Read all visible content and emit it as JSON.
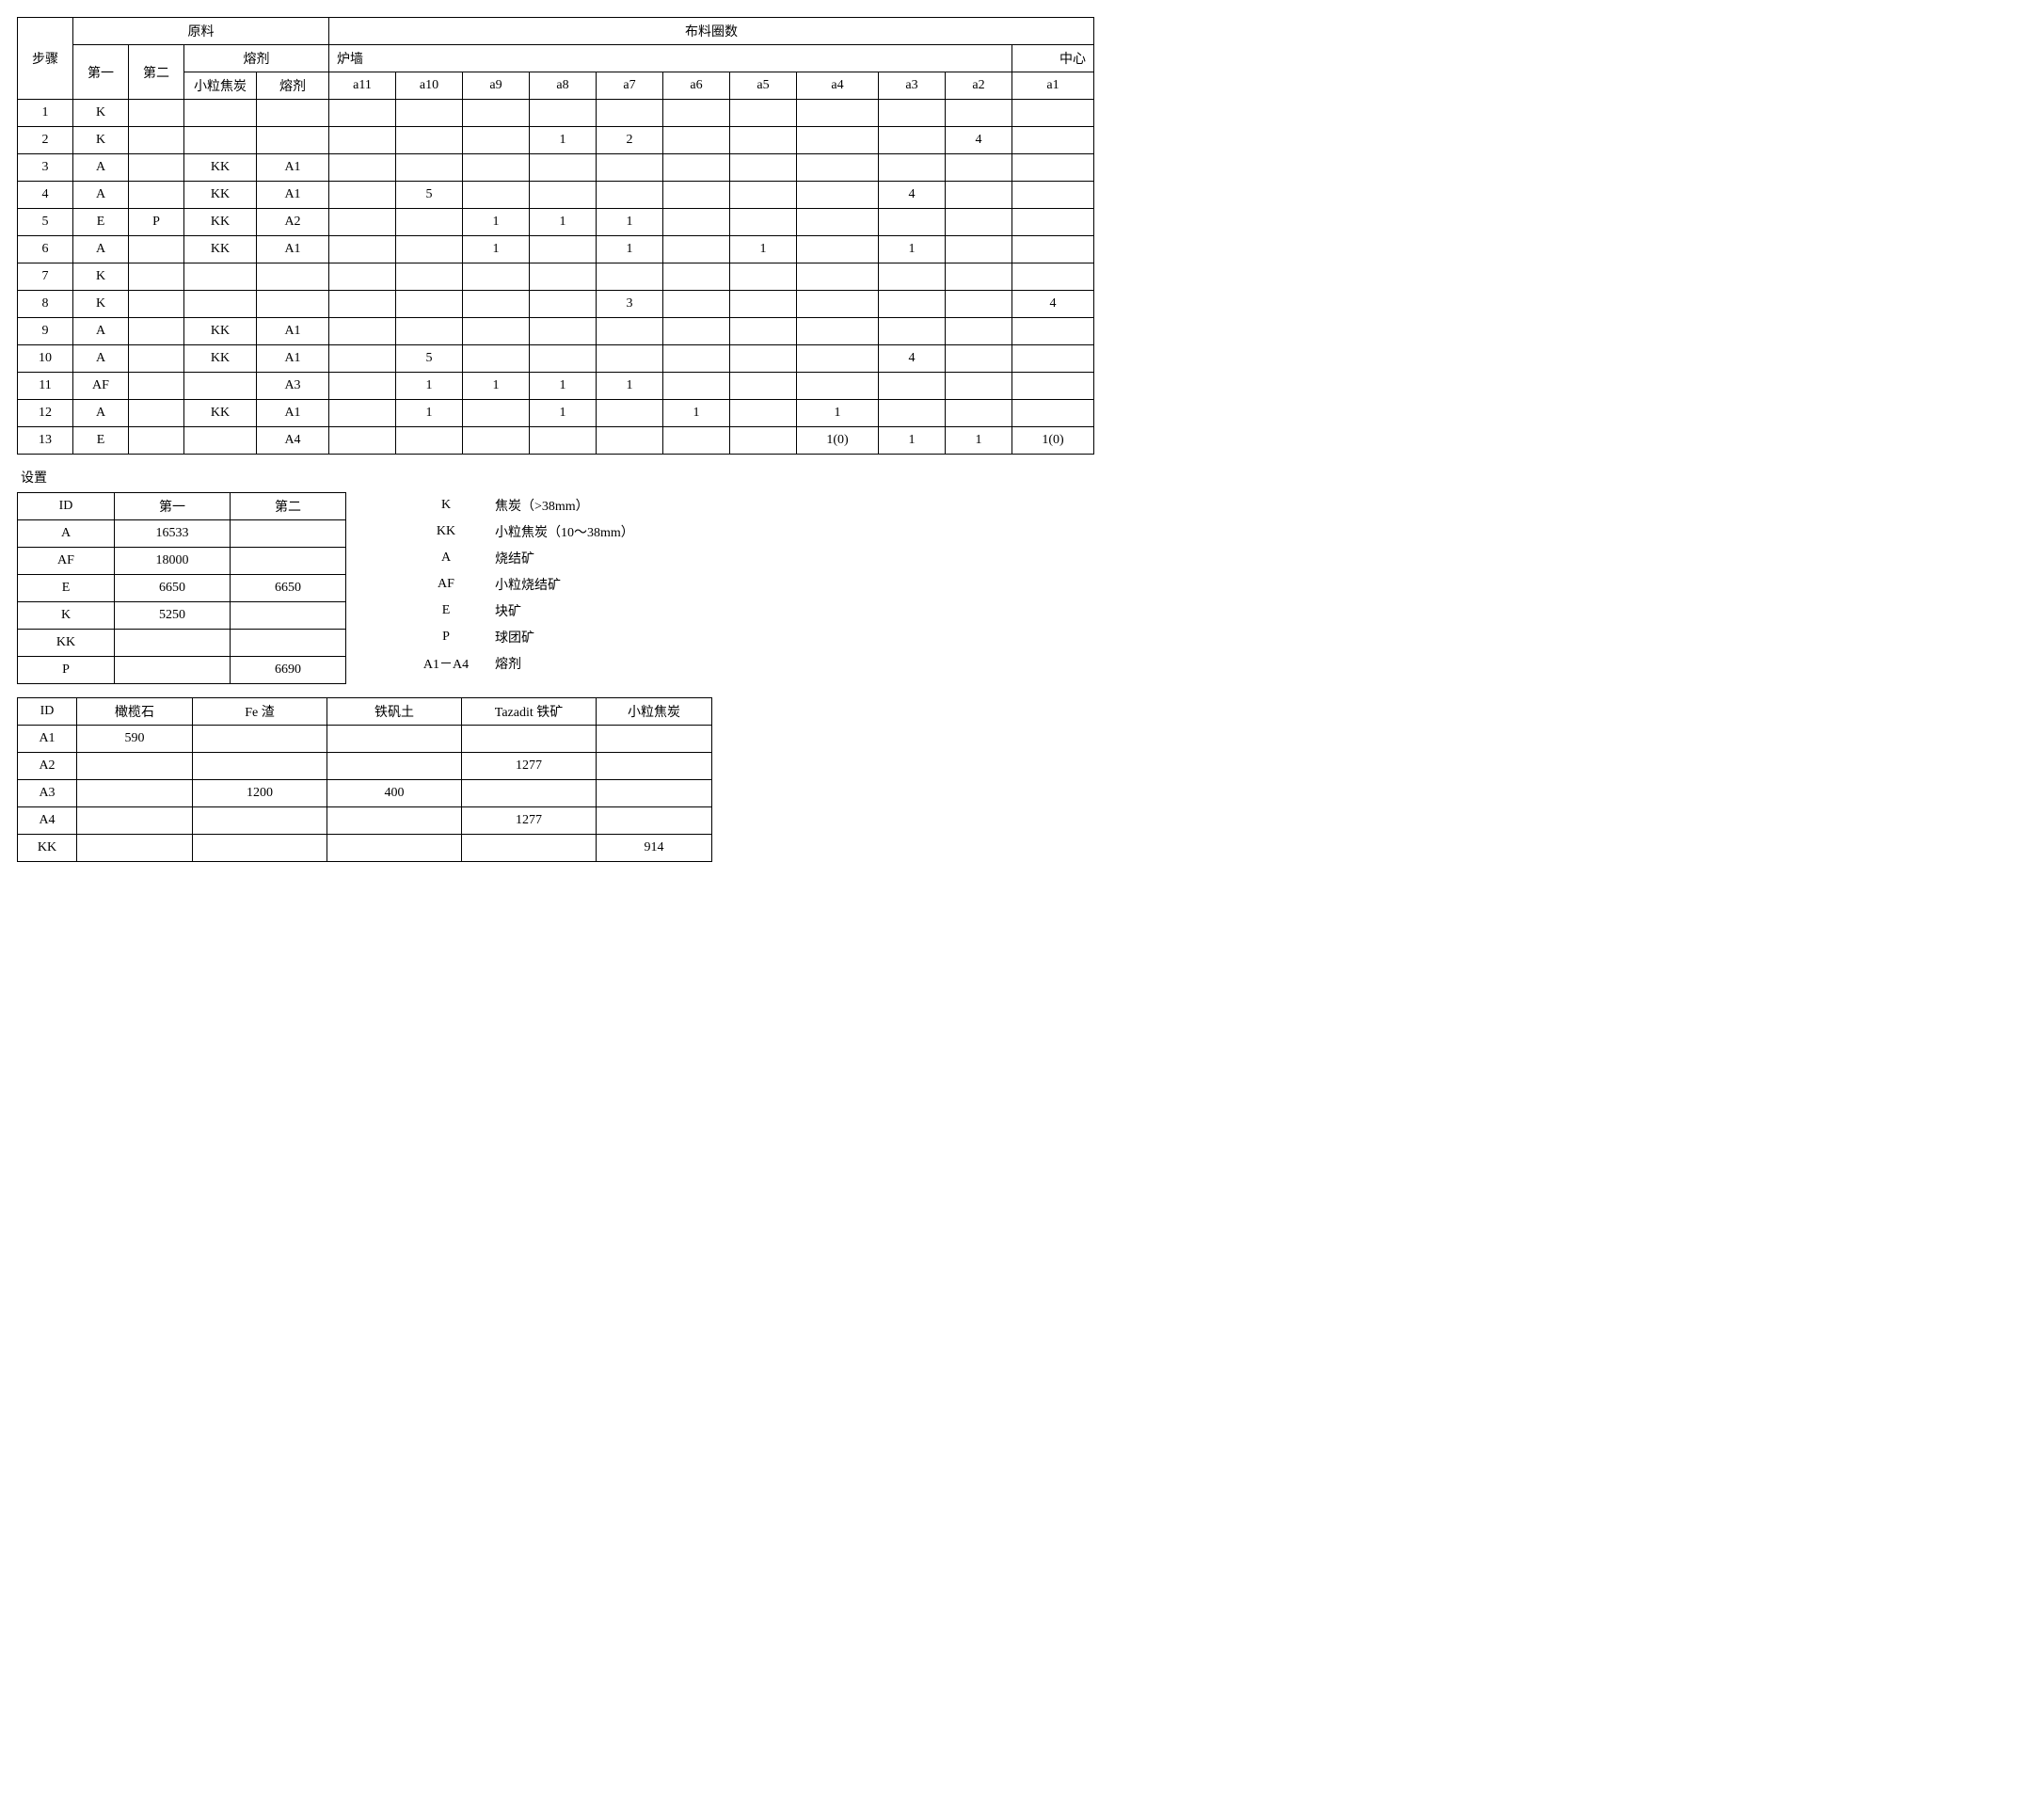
{
  "main_table": {
    "headers": {
      "step": "步骤",
      "raw_material": "原料",
      "first": "第一",
      "second": "第二",
      "flux_group": "熔剂",
      "small_coke": "小粒焦炭",
      "flux": "熔剂",
      "ring_count": "布料圈数",
      "furnace_wall": "炉墙",
      "center": "中心",
      "a11": "a11",
      "a10": "a10",
      "a9": "a9",
      "a8": "a8",
      "a7": "a7",
      "a6": "a6",
      "a5": "a5",
      "a4": "a4",
      "a3": "a3",
      "a2": "a2",
      "a1": "a1"
    },
    "rows": [
      {
        "step": "1",
        "first": "K",
        "second": "",
        "small": "",
        "flux": "",
        "a11": "",
        "a10": "",
        "a9": "",
        "a8": "",
        "a7": "",
        "a6": "",
        "a5": "",
        "a4": "",
        "a3": "",
        "a2": "",
        "a1": ""
      },
      {
        "step": "2",
        "first": "K",
        "second": "",
        "small": "",
        "flux": "",
        "a11": "",
        "a10": "",
        "a9": "",
        "a8": "1",
        "a7": "2",
        "a6": "",
        "a5": "",
        "a4": "",
        "a3": "",
        "a2": "4",
        "a1": ""
      },
      {
        "step": "3",
        "first": "A",
        "second": "",
        "small": "KK",
        "flux": "A1",
        "a11": "",
        "a10": "",
        "a9": "",
        "a8": "",
        "a7": "",
        "a6": "",
        "a5": "",
        "a4": "",
        "a3": "",
        "a2": "",
        "a1": ""
      },
      {
        "step": "4",
        "first": "A",
        "second": "",
        "small": "KK",
        "flux": "A1",
        "a11": "",
        "a10": "5",
        "a9": "",
        "a8": "",
        "a7": "",
        "a6": "",
        "a5": "",
        "a4": "",
        "a3": "4",
        "a2": "",
        "a1": ""
      },
      {
        "step": "5",
        "first": "E",
        "second": "P",
        "small": "KK",
        "flux": "A2",
        "a11": "",
        "a10": "",
        "a9": "1",
        "a8": "1",
        "a7": "1",
        "a6": "",
        "a5": "",
        "a4": "",
        "a3": "",
        "a2": "",
        "a1": ""
      },
      {
        "step": "6",
        "first": "A",
        "second": "",
        "small": "KK",
        "flux": "A1",
        "a11": "",
        "a10": "",
        "a9": "1",
        "a8": "",
        "a7": "1",
        "a6": "",
        "a5": "1",
        "a4": "",
        "a3": "1",
        "a2": "",
        "a1": ""
      },
      {
        "step": "7",
        "first": "K",
        "second": "",
        "small": "",
        "flux": "",
        "a11": "",
        "a10": "",
        "a9": "",
        "a8": "",
        "a7": "",
        "a6": "",
        "a5": "",
        "a4": "",
        "a3": "",
        "a2": "",
        "a1": ""
      },
      {
        "step": "8",
        "first": "K",
        "second": "",
        "small": "",
        "flux": "",
        "a11": "",
        "a10": "",
        "a9": "",
        "a8": "",
        "a7": "3",
        "a6": "",
        "a5": "",
        "a4": "",
        "a3": "",
        "a2": "",
        "a1": "4"
      },
      {
        "step": "9",
        "first": "A",
        "second": "",
        "small": "KK",
        "flux": "A1",
        "a11": "",
        "a10": "",
        "a9": "",
        "a8": "",
        "a7": "",
        "a6": "",
        "a5": "",
        "a4": "",
        "a3": "",
        "a2": "",
        "a1": ""
      },
      {
        "step": "10",
        "first": "A",
        "second": "",
        "small": "KK",
        "flux": "A1",
        "a11": "",
        "a10": "5",
        "a9": "",
        "a8": "",
        "a7": "",
        "a6": "",
        "a5": "",
        "a4": "",
        "a3": "4",
        "a2": "",
        "a1": ""
      },
      {
        "step": "11",
        "first": "AF",
        "second": "",
        "small": "",
        "flux": "A3",
        "a11": "",
        "a10": "1",
        "a9": "1",
        "a8": "1",
        "a7": "1",
        "a6": "",
        "a5": "",
        "a4": "",
        "a3": "",
        "a2": "",
        "a1": ""
      },
      {
        "step": "12",
        "first": "A",
        "second": "",
        "small": "KK",
        "flux": "A1",
        "a11": "",
        "a10": "1",
        "a9": "",
        "a8": "1",
        "a7": "",
        "a6": "1",
        "a5": "",
        "a4": "1",
        "a3": "",
        "a2": "",
        "a1": ""
      },
      {
        "step": "13",
        "first": "E",
        "second": "",
        "small": "",
        "flux": "A4",
        "a11": "",
        "a10": "",
        "a9": "",
        "a8": "",
        "a7": "",
        "a6": "",
        "a5": "",
        "a4": "1(0)",
        "a3": "1",
        "a2": "1",
        "a1": "1(0)"
      }
    ]
  },
  "settings_label": "设置",
  "settings_table": {
    "headers": {
      "id": "ID",
      "first": "第一",
      "second": "第二"
    },
    "rows": [
      {
        "id": "A",
        "first": "16533",
        "second": ""
      },
      {
        "id": "AF",
        "first": "18000",
        "second": ""
      },
      {
        "id": "E",
        "first": "6650",
        "second": "6650"
      },
      {
        "id": "K",
        "first": "5250",
        "second": ""
      },
      {
        "id": "KK",
        "first": "",
        "second": ""
      },
      {
        "id": "P",
        "first": "",
        "second": "6690"
      }
    ]
  },
  "legend": [
    {
      "code": "K",
      "desc": "焦炭（>38mm）"
    },
    {
      "code": "KK",
      "desc": "小粒焦炭（10～38mm）"
    },
    {
      "code": "A",
      "desc": "烧结矿"
    },
    {
      "code": "AF",
      "desc": "小粒烧结矿"
    },
    {
      "code": "E",
      "desc": "块矿"
    },
    {
      "code": "P",
      "desc": "球团矿"
    },
    {
      "code": "A1－A4",
      "desc": "熔剂"
    }
  ],
  "flux_table": {
    "headers": {
      "id": "ID",
      "olivine": "橄榄石",
      "fe_slag": "Fe 渣",
      "bauxite": "铁矾土",
      "tazadit": "Tazadit 铁矿",
      "small_coke": "小粒焦炭"
    },
    "rows": [
      {
        "id": "A1",
        "olivine": "590",
        "fe_slag": "",
        "bauxite": "",
        "tazadit": "",
        "small_coke": ""
      },
      {
        "id": "A2",
        "olivine": "",
        "fe_slag": "",
        "bauxite": "",
        "tazadit": "1277",
        "small_coke": ""
      },
      {
        "id": "A3",
        "olivine": "",
        "fe_slag": "1200",
        "bauxite": "400",
        "tazadit": "",
        "small_coke": ""
      },
      {
        "id": "A4",
        "olivine": "",
        "fe_slag": "",
        "bauxite": "",
        "tazadit": "1277",
        "small_coke": ""
      },
      {
        "id": "KK",
        "olivine": "",
        "fe_slag": "",
        "bauxite": "",
        "tazadit": "",
        "small_coke": "914"
      }
    ]
  }
}
